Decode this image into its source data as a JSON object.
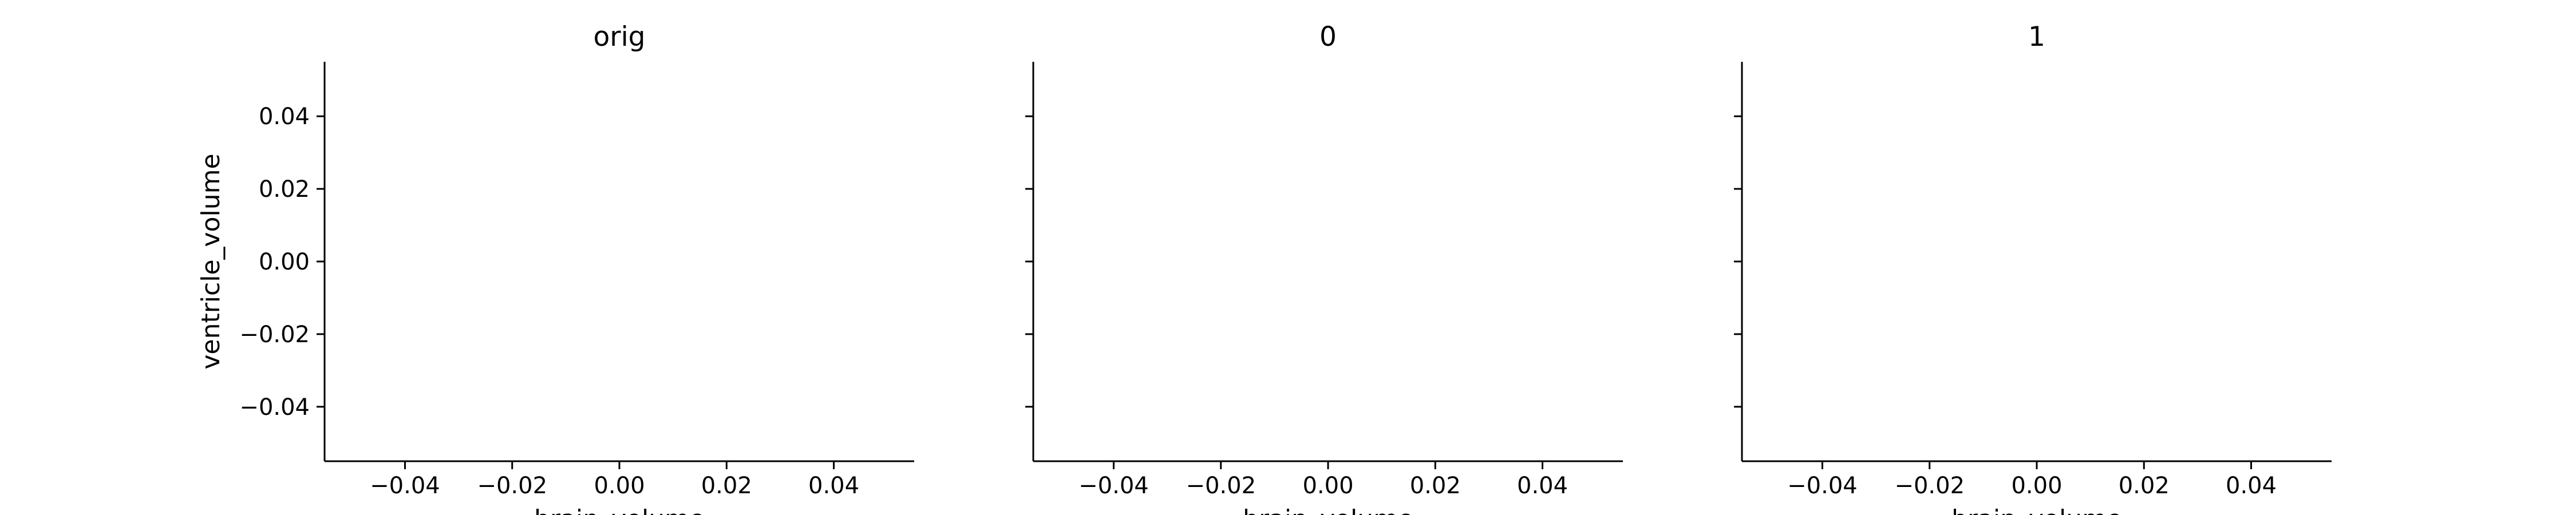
{
  "chart_data": [
    {
      "type": "scatter",
      "title": "orig",
      "xlabel": "brain_volume",
      "ylabel": "ventricle_volume",
      "xlim": [
        -0.055,
        0.055
      ],
      "ylim": [
        -0.055,
        0.055
      ],
      "x_ticks": [
        -0.04,
        -0.02,
        0.0,
        0.02,
        0.04
      ],
      "y_ticks": [
        -0.04,
        -0.02,
        0.0,
        0.02,
        0.04
      ],
      "x_tick_labels": [
        "−0.04",
        "−0.02",
        "0.00",
        "0.02",
        "0.04"
      ],
      "y_tick_labels": [
        "−0.04",
        "−0.02",
        "0.00",
        "0.02",
        "0.04"
      ],
      "points": [],
      "grid": false
    },
    {
      "type": "scatter",
      "title": "0",
      "xlabel": "brain_volume",
      "ylabel": "",
      "xlim": [
        -0.055,
        0.055
      ],
      "ylim": [
        -0.055,
        0.055
      ],
      "x_ticks": [
        -0.04,
        -0.02,
        0.0,
        0.02,
        0.04
      ],
      "y_ticks": [
        -0.04,
        -0.02,
        0.0,
        0.02,
        0.04
      ],
      "x_tick_labels": [
        "−0.04",
        "−0.02",
        "0.00",
        "0.02",
        "0.04"
      ],
      "y_tick_labels": [],
      "points": [],
      "grid": false
    },
    {
      "type": "scatter",
      "title": "1",
      "xlabel": "brain_volume",
      "ylabel": "",
      "xlim": [
        -0.055,
        0.055
      ],
      "ylim": [
        -0.055,
        0.055
      ],
      "x_ticks": [
        -0.04,
        -0.02,
        0.0,
        0.02,
        0.04
      ],
      "y_ticks": [
        -0.04,
        -0.02,
        0.0,
        0.02,
        0.04
      ],
      "x_tick_labels": [
        "−0.04",
        "−0.02",
        "0.00",
        "0.02",
        "0.04"
      ],
      "y_tick_labels": [],
      "points": [],
      "grid": false
    }
  ]
}
